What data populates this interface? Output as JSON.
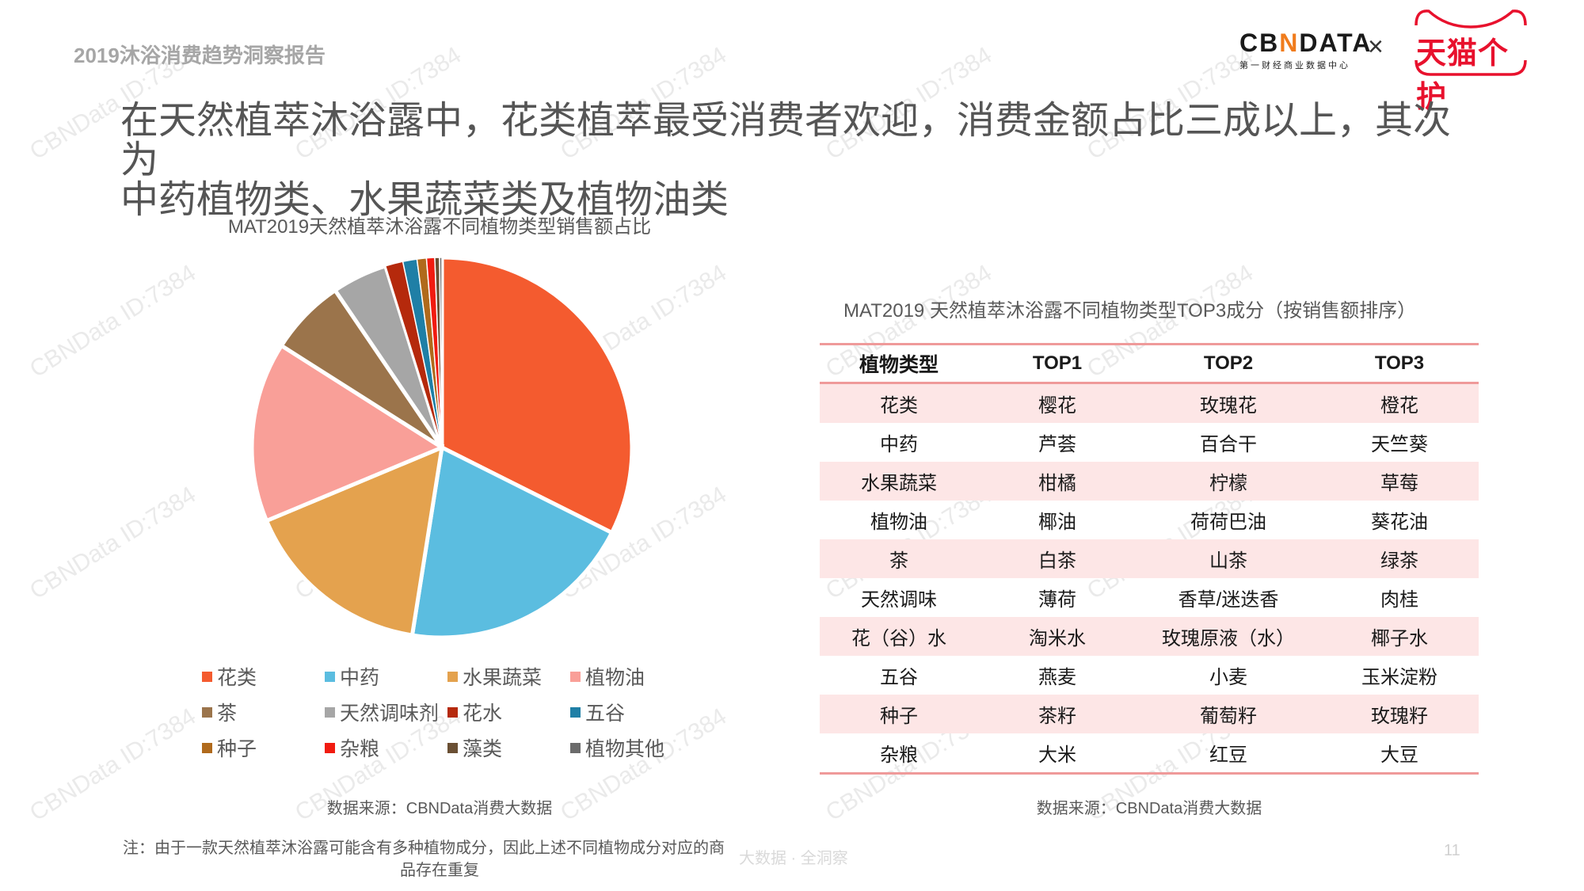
{
  "header": {
    "report_name": "2019沐浴消费趋势洞察报告",
    "logo_cbn": {
      "text_pre": "CB",
      "text_accent": "N",
      "text_post": "DATA",
      "subtitle": "第一财经商业数据中心"
    },
    "logo_separator": "×",
    "logo_tmall": "天猫个护"
  },
  "main_title": {
    "line1": "在天然植萃沐浴露中，花类植萃最受消费者欢迎，消费金额占比三成以上，其次为",
    "line2": "中药植物类、水果蔬菜类及植物油类"
  },
  "chart_data": {
    "type": "pie",
    "title": "MAT2019天然植萃沐浴露不同植物类型销售额占比",
    "start_angle": "12 o'clock, clockwise",
    "unit": "% of sales (estimated from slice angles, no data labels shown)",
    "categories": [
      "花类",
      "中药",
      "水果蔬菜",
      "植物油",
      "茶",
      "天然调味剂",
      "花水",
      "五谷",
      "种子",
      "杂粮",
      "藻类",
      "植物其他"
    ],
    "values": [
      32.4,
      20.1,
      16.2,
      15.3,
      6.5,
      4.7,
      1.5,
      1.2,
      0.8,
      0.7,
      0.4,
      0.2
    ],
    "colors": [
      "#f45b2f",
      "#5bbde0",
      "#e4a24e",
      "#f99f98",
      "#9b744b",
      "#a6a6a6",
      "#b5290c",
      "#1f7fa6",
      "#b06a1c",
      "#f11b10",
      "#6a4f33",
      "#6b6b6b"
    ],
    "legend_position": "bottom, 4 columns × 3 rows"
  },
  "legend": [
    {
      "label": "花类",
      "color": "#f45b2f"
    },
    {
      "label": "中药",
      "color": "#5bbde0"
    },
    {
      "label": "水果蔬菜",
      "color": "#e4a24e"
    },
    {
      "label": "植物油",
      "color": "#f99f98"
    },
    {
      "label": "茶",
      "color": "#9b744b"
    },
    {
      "label": "天然调味剂",
      "color": "#a6a6a6"
    },
    {
      "label": "花水",
      "color": "#b5290c"
    },
    {
      "label": "五谷",
      "color": "#1f7fa6"
    },
    {
      "label": "种子",
      "color": "#b06a1c"
    },
    {
      "label": "杂粮",
      "color": "#f11b10"
    },
    {
      "label": "藻类",
      "color": "#6a4f33"
    },
    {
      "label": "植物其他",
      "color": "#6b6b6b"
    }
  ],
  "chart_source": "数据来源：CBNData消费大数据",
  "table": {
    "title": "MAT2019 天然植萃沐浴露不同植物类型TOP3成分（按销售额排序）",
    "headers": [
      "植物类型",
      "TOP1",
      "TOP2",
      "TOP3"
    ],
    "rows": [
      [
        "花类",
        "樱花",
        "玫瑰花",
        "橙花"
      ],
      [
        "中药",
        "芦荟",
        "百合干",
        "天竺葵"
      ],
      [
        "水果蔬菜",
        "柑橘",
        "柠檬",
        "草莓"
      ],
      [
        "植物油",
        "椰油",
        "荷荷巴油",
        "葵花油"
      ],
      [
        "茶",
        "白茶",
        "山茶",
        "绿茶"
      ],
      [
        "天然调味",
        "薄荷",
        "香草/迷迭香",
        "肉桂"
      ],
      [
        "花（谷）水",
        "淘米水",
        "玫瑰原液（水）",
        "椰子水"
      ],
      [
        "五谷",
        "燕麦",
        "小麦",
        "玉米淀粉"
      ],
      [
        "种子",
        "茶籽",
        "葡萄籽",
        "玫瑰籽"
      ],
      [
        "杂粮",
        "大米",
        "红豆",
        "大豆"
      ]
    ],
    "stripe_color": "#fde6e6",
    "rule_color": "#ef9a9a",
    "source": "数据来源：CBNData消费大数据"
  },
  "footer": {
    "note_line1": "注：由于一款天然植萃沐浴露可能含有多种植物成分，因此上述不同植物成分对应的商",
    "note_line2": "品存在重复",
    "tagline": "大数据 · 全洞察",
    "page_number": "11"
  },
  "watermark": "CBNData ID:7384"
}
